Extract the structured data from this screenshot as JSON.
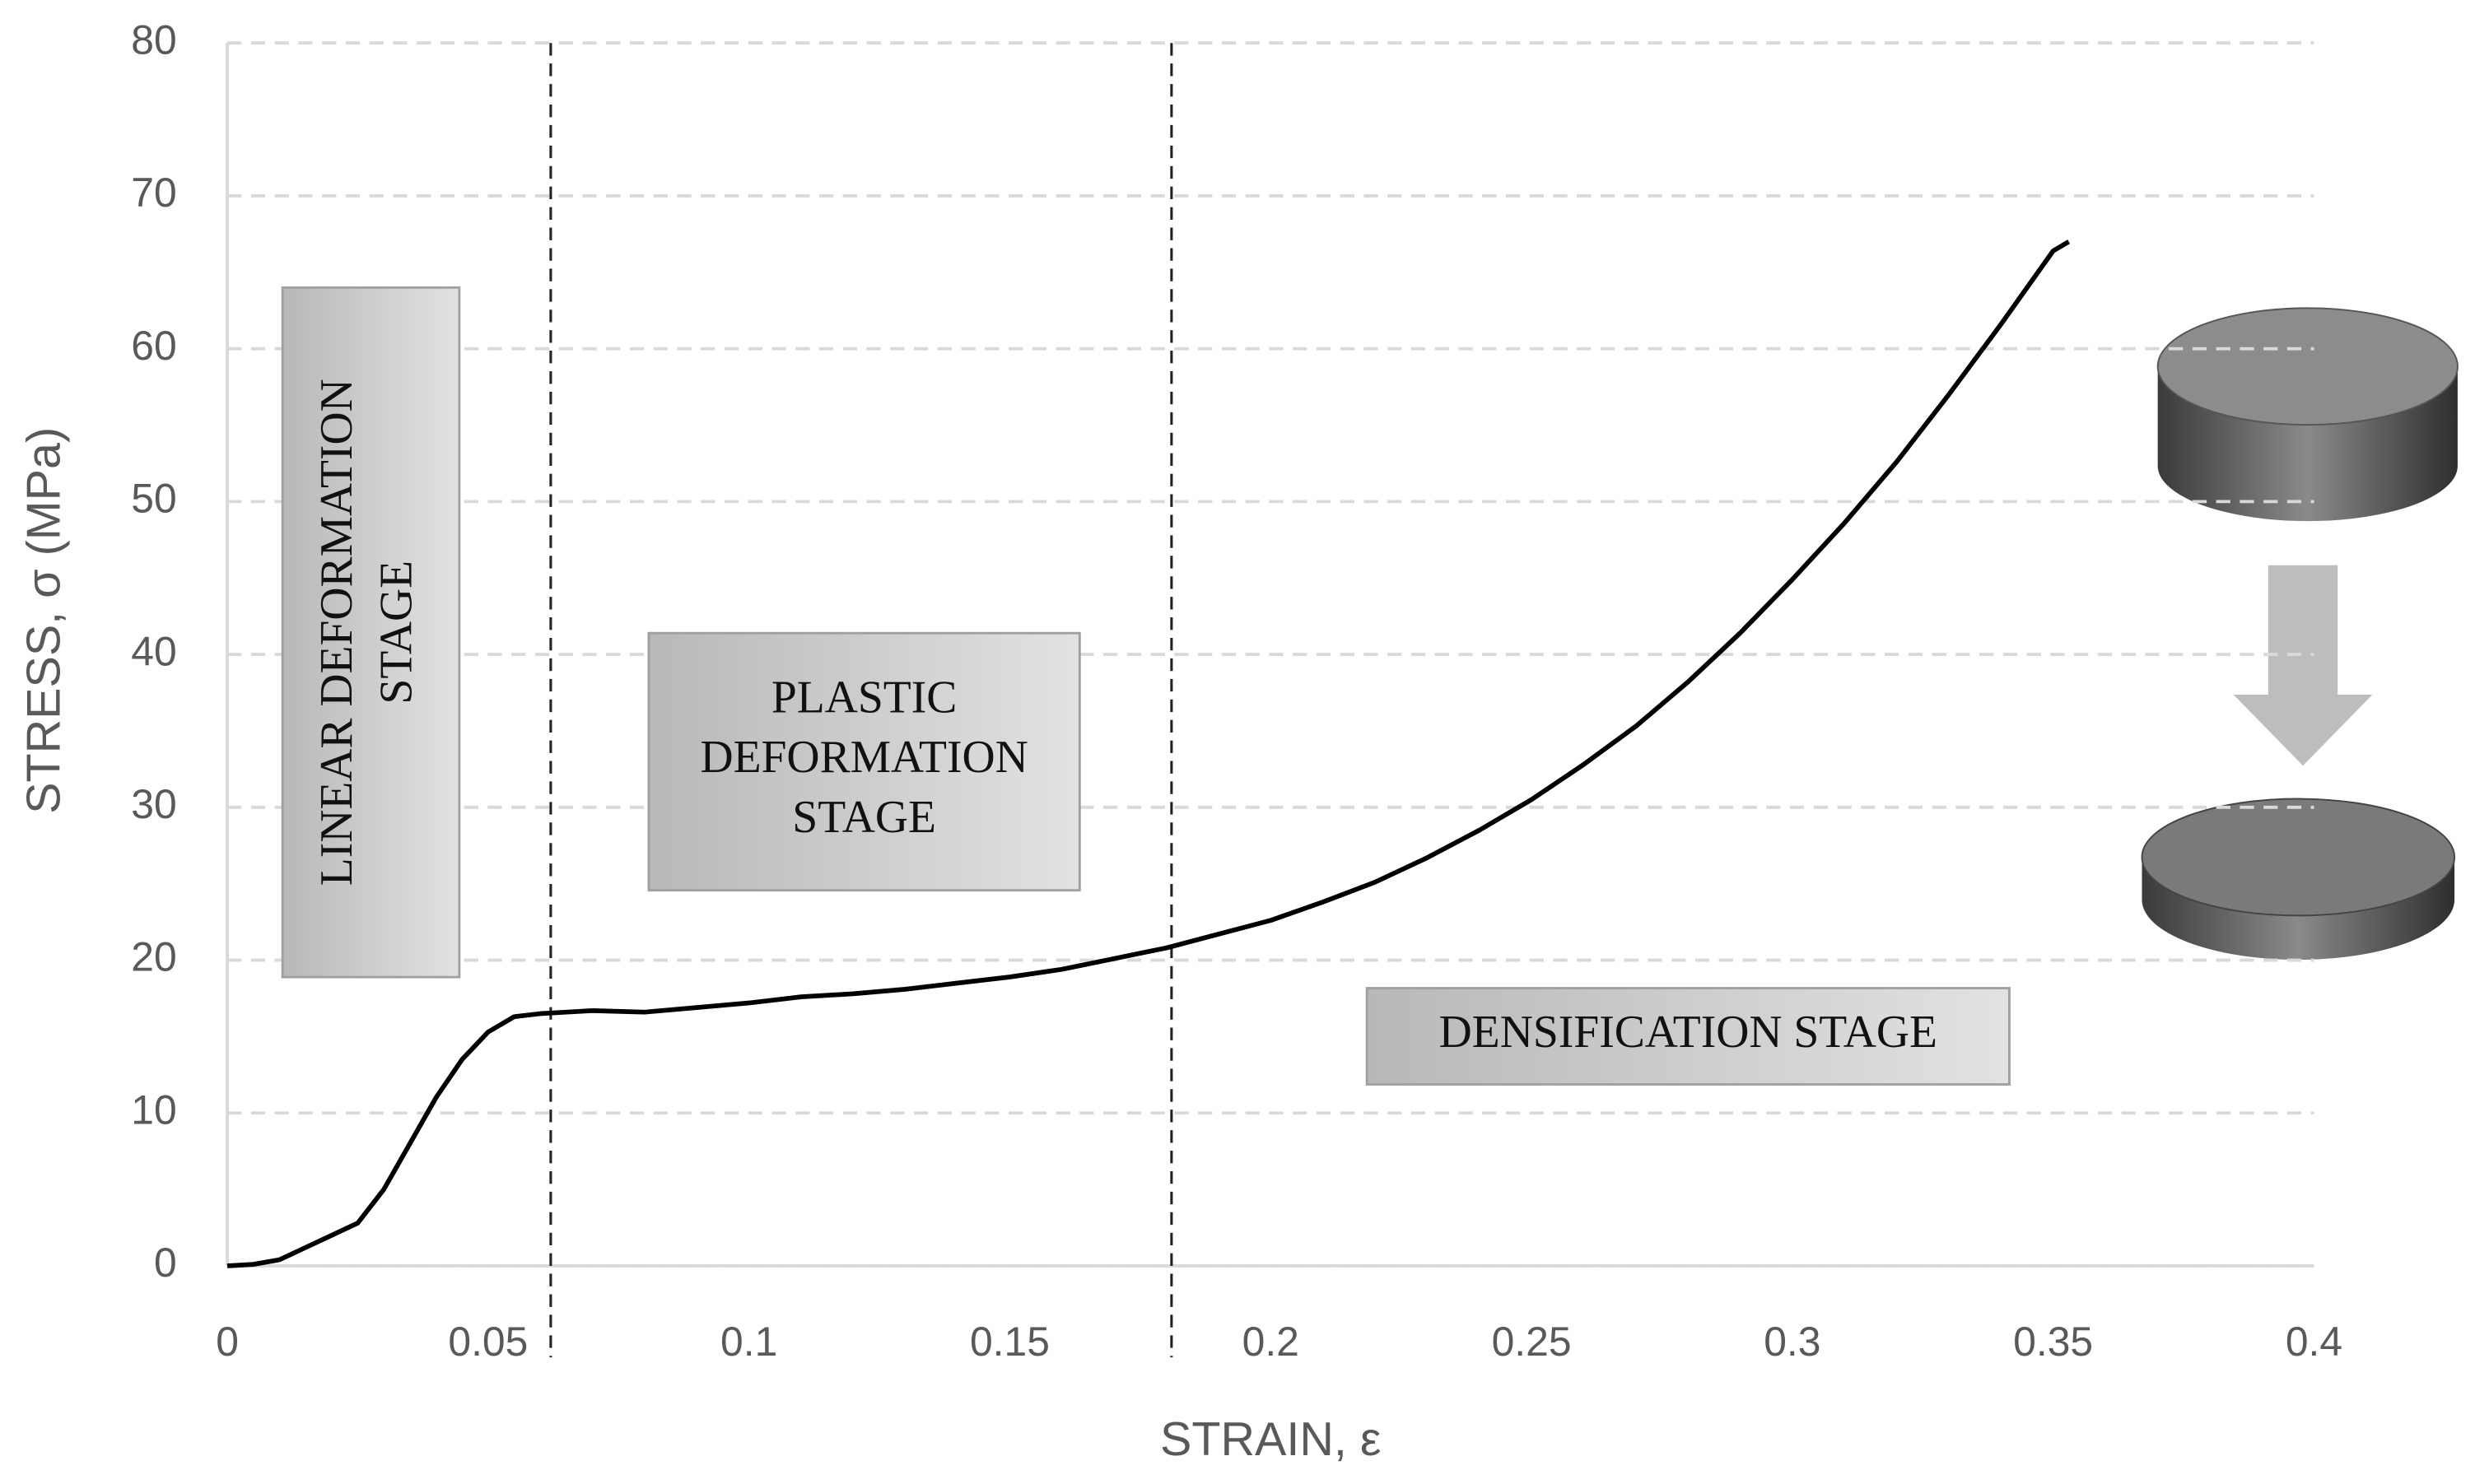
{
  "chart_data": {
    "type": "line",
    "x_label": "STRAIN, ε",
    "y_label": "STRESS, σ (MPa)",
    "x": [
      0,
      0.005,
      0.01,
      0.015,
      0.02,
      0.025,
      0.03,
      0.035,
      0.04,
      0.045,
      0.05,
      0.055,
      0.06,
      0.065,
      0.07,
      0.08,
      0.09,
      0.1,
      0.11,
      0.12,
      0.13,
      0.14,
      0.15,
      0.16,
      0.17,
      0.18,
      0.19,
      0.2,
      0.21,
      0.22,
      0.23,
      0.24,
      0.25,
      0.26,
      0.27,
      0.28,
      0.29,
      0.3,
      0.31,
      0.32,
      0.33,
      0.34,
      0.35,
      0.353
    ],
    "values": [
      0,
      0.1,
      0.4,
      1.2,
      2,
      2.8,
      5,
      8,
      11,
      13.5,
      15.3,
      16.3,
      16.5,
      16.6,
      16.7,
      16.6,
      16.9,
      17.2,
      17.6,
      17.8,
      18.1,
      18.5,
      18.9,
      19.4,
      20.1,
      20.8,
      21.7,
      22.6,
      23.8,
      25.1,
      26.7,
      28.5,
      30.5,
      32.8,
      35.3,
      38.2,
      41.4,
      44.9,
      48.6,
      52.6,
      57,
      61.6,
      66.4,
      67
    ],
    "color": "#000000",
    "xlim": [
      0,
      0.4
    ],
    "xticks": [
      0,
      0.05,
      0.1,
      0.15,
      0.2,
      0.25,
      0.3,
      0.35,
      0.4
    ],
    "ylim": [
      0,
      80
    ],
    "yticks": [
      0,
      10,
      20,
      30,
      40,
      50,
      60,
      70,
      80
    ],
    "grid": true,
    "stage_boundaries": [
      0.062,
      0.181
    ],
    "annotations": [
      {
        "lines": [
          "LINEAR DEFORMATION",
          "STAGE"
        ]
      },
      {
        "lines": [
          "PLASTIC",
          "DEFORMATION",
          "STAGE"
        ]
      },
      {
        "lines": [
          "DENSIFICATION STAGE"
        ]
      }
    ]
  }
}
